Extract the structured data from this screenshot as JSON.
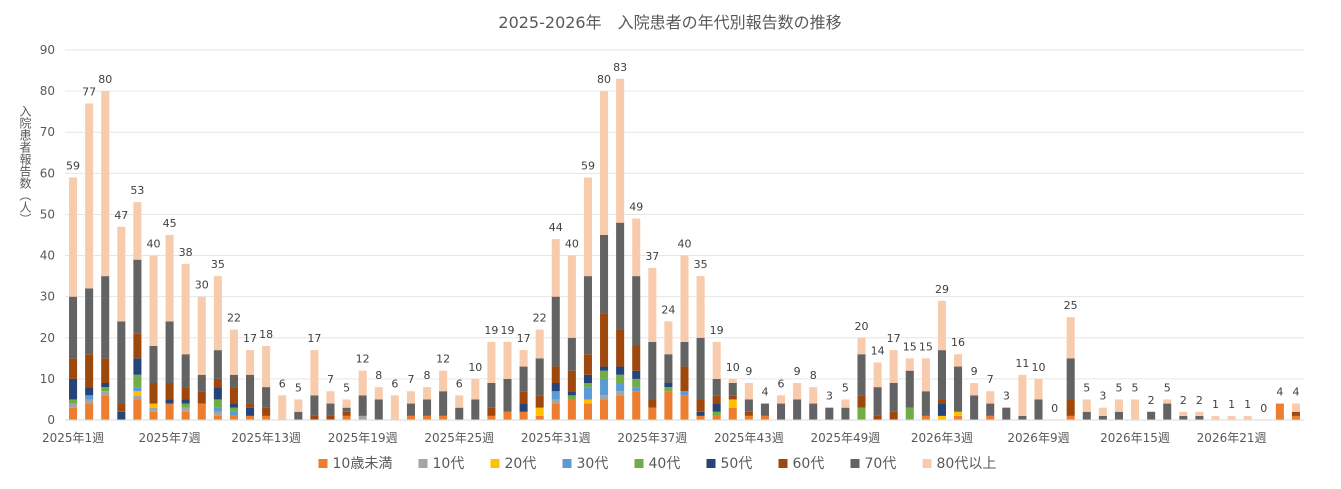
{
  "chart_data": {
    "type": "bar",
    "stacked": true,
    "title": "2025-2026年　入院患者の年代別報告数の推移",
    "ylabel": "入院患者報告数（人）",
    "ylim": [
      0,
      90
    ],
    "yticks": [
      0,
      10,
      20,
      30,
      40,
      50,
      60,
      70,
      80,
      90
    ],
    "grid": true,
    "legend_position": "bottom",
    "categories": [
      "2025年1週",
      "2025年2週",
      "2025年3週",
      "2025年4週",
      "2025年5週",
      "2025年6週",
      "2025年7週",
      "2025年8週",
      "2025年9週",
      "2025年10週",
      "2025年11週",
      "2025年12週",
      "2025年13週",
      "2025年14週",
      "2025年15週",
      "2025年16週",
      "2025年17週",
      "2025年18週",
      "2025年19週",
      "2025年20週",
      "2025年21週",
      "2025年22週",
      "2025年23週",
      "2025年24週",
      "2025年25週",
      "2025年26週",
      "2025年27週",
      "2025年28週",
      "2025年29週",
      "2025年30週",
      "2025年31週",
      "2025年32週",
      "2025年33週",
      "2025年34週",
      "2025年35週",
      "2025年36週",
      "2025年37週",
      "2025年38週",
      "2025年39週",
      "2025年40週",
      "2025年41週",
      "2025年42週",
      "2025年43週",
      "2025年44週",
      "2025年45週",
      "2025年46週",
      "2025年47週",
      "2025年48週",
      "2025年49週",
      "2025年50週",
      "2025年51週",
      "2025年52週",
      "2026年1週",
      "2026年2週",
      "2026年3週",
      "2026年4週",
      "2026年5週",
      "2026年6週",
      "2026年7週",
      "2026年8週",
      "2026年9週",
      "2026年10週",
      "2026年11週",
      "2026年12週",
      "2026年13週",
      "2026年14週",
      "2026年15週",
      "2026年16週",
      "2026年17週",
      "2026年18週",
      "2026年19週",
      "2026年20週",
      "2026年21週",
      "2026年22週",
      "2026年23週",
      "2026年24週",
      "2026年25週"
    ],
    "xtick_labels": [
      {
        "index": 0,
        "label": "2025年1週"
      },
      {
        "index": 6,
        "label": "2025年7週"
      },
      {
        "index": 12,
        "label": "2025年13週"
      },
      {
        "index": 18,
        "label": "2025年19週"
      },
      {
        "index": 24,
        "label": "2025年25週"
      },
      {
        "index": 30,
        "label": "2025年31週"
      },
      {
        "index": 36,
        "label": "2025年37週"
      },
      {
        "index": 42,
        "label": "2025年43週"
      },
      {
        "index": 48,
        "label": "2025年49週"
      },
      {
        "index": 54,
        "label": "2026年3週"
      },
      {
        "index": 60,
        "label": "2026年9週"
      },
      {
        "index": 66,
        "label": "2026年15週"
      },
      {
        "index": 72,
        "label": "2026年21週"
      }
    ],
    "totals": [
      59,
      77,
      80,
      47,
      53,
      40,
      45,
      38,
      30,
      35,
      22,
      17,
      18,
      6,
      5,
      17,
      7,
      5,
      12,
      8,
      6,
      7,
      8,
      12,
      6,
      10,
      19,
      19,
      17,
      22,
      44,
      40,
      59,
      80,
      83,
      49,
      37,
      24,
      40,
      35,
      19,
      10,
      9,
      4,
      6,
      9,
      8,
      3,
      5,
      20,
      14,
      17,
      15,
      15,
      29,
      16,
      9,
      7,
      3,
      11,
      10,
      0,
      25,
      5,
      3,
      5,
      5,
      2,
      5,
      2,
      2,
      1,
      1,
      1,
      0,
      4,
      4
    ],
    "series": [
      {
        "name": "10歳未満",
        "color": "#ED7D31",
        "values": [
          3,
          4,
          6,
          0,
          5,
          2,
          4,
          2,
          4,
          1,
          1,
          1,
          1,
          0,
          0,
          0,
          0,
          1,
          0,
          0,
          0,
          1,
          1,
          1,
          0,
          0,
          1,
          2,
          2,
          1,
          4,
          5,
          4,
          5,
          6,
          7,
          3,
          7,
          6,
          1,
          1,
          3,
          1,
          1,
          0,
          0,
          0,
          0,
          0,
          0,
          0,
          0,
          0,
          1,
          0,
          1,
          0,
          1,
          0,
          0,
          0,
          0,
          1,
          0,
          0,
          0,
          0,
          0,
          0,
          0,
          0,
          0,
          0,
          0,
          0,
          4,
          1
        ]
      },
      {
        "name": "10代",
        "color": "#A5A5A5",
        "values": [
          1,
          1,
          1,
          0,
          1,
          1,
          0,
          1,
          0,
          1,
          0,
          0,
          0,
          0,
          0,
          0,
          0,
          0,
          1,
          0,
          0,
          0,
          0,
          0,
          0,
          0,
          0,
          0,
          0,
          0,
          1,
          0,
          0,
          1,
          1,
          0,
          0,
          0,
          0,
          0,
          0,
          0,
          0,
          0,
          0,
          0,
          0,
          0,
          0,
          0,
          0,
          0,
          0,
          0,
          0,
          0,
          0,
          0,
          0,
          0,
          0,
          0,
          0,
          0,
          0,
          0,
          0,
          0,
          0,
          0,
          0,
          0,
          0,
          0,
          0,
          0,
          0
        ]
      },
      {
        "name": "20代",
        "color": "#FFC000",
        "values": [
          0,
          0,
          0,
          0,
          1,
          1,
          0,
          0,
          0,
          0,
          0,
          0,
          0,
          0,
          0,
          0,
          0,
          0,
          0,
          0,
          0,
          0,
          0,
          0,
          0,
          0,
          0,
          0,
          0,
          2,
          0,
          0,
          1,
          0,
          0,
          0,
          0,
          0,
          0,
          0,
          0,
          2,
          0,
          0,
          0,
          0,
          0,
          0,
          0,
          0,
          0,
          0,
          0,
          0,
          1,
          1,
          0,
          0,
          0,
          0,
          0,
          0,
          0,
          0,
          0,
          0,
          0,
          0,
          0,
          0,
          0,
          0,
          0,
          0,
          0,
          0,
          0
        ]
      },
      {
        "name": "30代",
        "color": "#5B9BD5",
        "values": [
          0,
          1,
          0,
          0,
          1,
          0,
          0,
          0,
          0,
          1,
          1,
          0,
          0,
          0,
          0,
          0,
          0,
          0,
          0,
          0,
          0,
          0,
          0,
          0,
          0,
          0,
          0,
          0,
          0,
          0,
          2,
          0,
          3,
          4,
          2,
          1,
          0,
          0,
          1,
          0,
          0,
          0,
          0,
          0,
          0,
          0,
          0,
          0,
          0,
          0,
          0,
          0,
          0,
          0,
          0,
          0,
          0,
          0,
          0,
          0,
          0,
          0,
          0,
          0,
          0,
          0,
          0,
          0,
          0,
          0,
          0,
          0,
          0,
          0,
          0,
          0,
          0
        ]
      },
      {
        "name": "40代",
        "color": "#70AD47",
        "values": [
          1,
          0,
          1,
          0,
          3,
          0,
          0,
          1,
          0,
          2,
          1,
          0,
          0,
          0,
          0,
          0,
          0,
          0,
          0,
          0,
          0,
          0,
          0,
          0,
          0,
          0,
          0,
          0,
          0,
          0,
          0,
          1,
          1,
          2,
          2,
          2,
          0,
          1,
          0,
          0,
          1,
          0,
          0,
          0,
          0,
          0,
          0,
          0,
          0,
          3,
          0,
          0,
          3,
          0,
          0,
          0,
          0,
          0,
          0,
          0,
          0,
          0,
          0,
          0,
          0,
          0,
          0,
          0,
          0,
          0,
          0,
          0,
          0,
          0,
          0,
          0,
          0
        ]
      },
      {
        "name": "50代",
        "color": "#264478",
        "values": [
          5,
          2,
          1,
          2,
          4,
          0,
          1,
          1,
          0,
          3,
          1,
          2,
          0,
          0,
          0,
          0,
          0,
          0,
          0,
          0,
          0,
          0,
          0,
          0,
          0,
          0,
          0,
          0,
          2,
          0,
          2,
          1,
          2,
          1,
          2,
          2,
          0,
          1,
          0,
          1,
          2,
          0,
          0,
          0,
          0,
          0,
          0,
          0,
          0,
          0,
          0,
          0,
          0,
          0,
          3,
          0,
          0,
          0,
          0,
          0,
          0,
          0,
          0,
          0,
          0,
          0,
          0,
          0,
          0,
          0,
          0,
          0,
          0,
          0,
          0,
          0,
          0
        ]
      },
      {
        "name": "60代",
        "color": "#9E480E",
        "values": [
          5,
          8,
          6,
          2,
          6,
          5,
          4,
          3,
          3,
          2,
          4,
          1,
          2,
          0,
          0,
          1,
          1,
          1,
          0,
          0,
          0,
          0,
          0,
          0,
          0,
          0,
          2,
          0,
          3,
          3,
          4,
          5,
          5,
          13,
          9,
          6,
          2,
          0,
          6,
          3,
          2,
          1,
          1,
          0,
          0,
          0,
          0,
          0,
          0,
          3,
          1,
          2,
          0,
          0,
          1,
          0,
          0,
          0,
          0,
          0,
          0,
          0,
          4,
          0,
          0,
          0,
          0,
          0,
          0,
          0,
          0,
          0,
          0,
          0,
          0,
          0,
          1
        ]
      },
      {
        "name": "70代",
        "color": "#636363",
        "values": [
          15,
          16,
          20,
          20,
          18,
          9,
          15,
          8,
          4,
          7,
          3,
          7,
          5,
          0,
          2,
          5,
          3,
          1,
          5,
          5,
          0,
          3,
          4,
          6,
          3,
          5,
          6,
          8,
          6,
          9,
          17,
          8,
          19,
          19,
          26,
          17,
          14,
          7,
          6,
          15,
          4,
          3,
          3,
          3,
          4,
          5,
          4,
          3,
          3,
          10,
          7,
          7,
          9,
          6,
          12,
          11,
          6,
          3,
          3,
          1,
          5,
          0,
          10,
          2,
          1,
          2,
          0,
          2,
          4,
          1,
          1,
          0,
          0,
          0,
          0,
          0,
          0
        ]
      },
      {
        "name": "80代以上",
        "color": "#F8CBAD",
        "values": [
          29,
          45,
          45,
          23,
          14,
          22,
          21,
          22,
          19,
          18,
          11,
          6,
          10,
          6,
          3,
          11,
          3,
          2,
          6,
          3,
          6,
          3,
          3,
          5,
          3,
          5,
          10,
          9,
          4,
          7,
          14,
          20,
          24,
          35,
          35,
          14,
          18,
          8,
          21,
          15,
          9,
          1,
          4,
          0,
          2,
          4,
          4,
          0,
          2,
          4,
          6,
          8,
          3,
          8,
          12,
          3,
          3,
          3,
          0,
          10,
          5,
          0,
          10,
          3,
          2,
          3,
          5,
          0,
          1,
          1,
          1,
          1,
          1,
          1,
          0,
          0,
          2
        ]
      }
    ]
  }
}
